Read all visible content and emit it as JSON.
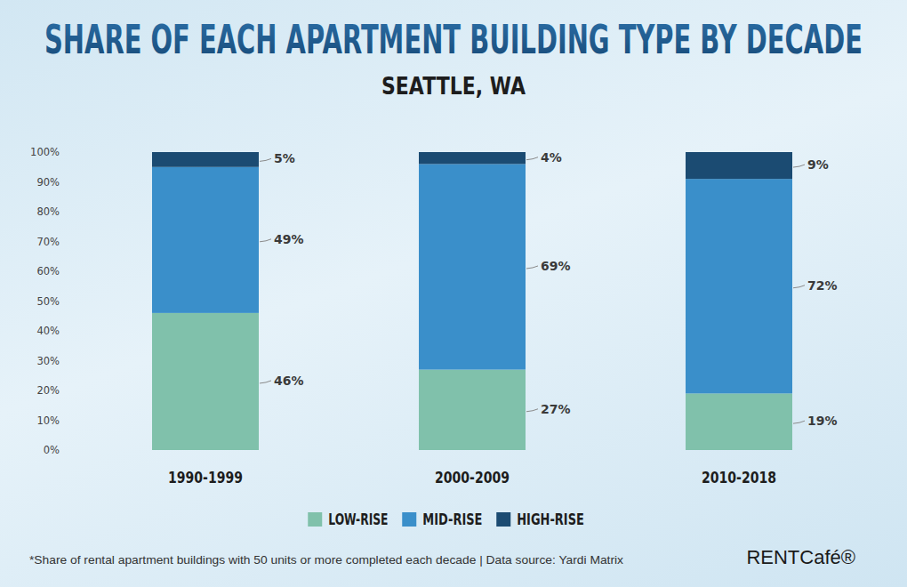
{
  "chart_data": {
    "type": "bar",
    "title": "SHARE OF EACH APARTMENT BUILDING TYPE BY DECADE",
    "subtitle": "SEATTLE, WA",
    "annotations": [
      "*Share of rental apartment buildings with 50 units or more completed each decade  |  Data source: Yardi Matrix",
      "RENTCafé®"
    ],
    "categories": [
      "1990-1999",
      "2000-2009",
      "2010-2018"
    ],
    "series": [
      {
        "name": "LOW-RISE",
        "color": "#80c1ab",
        "values": [
          46,
          27,
          19
        ],
        "value_labels": [
          "46%",
          "27%",
          "19%"
        ]
      },
      {
        "name": "MID-RISE",
        "color": "#3a8fca",
        "values": [
          49,
          69,
          72
        ],
        "value_labels": [
          "49%",
          "69%",
          "72%"
        ]
      },
      {
        "name": "HIGH-RISE",
        "color": "#1b4b72",
        "values": [
          5,
          4,
          9
        ],
        "value_labels": [
          "5%",
          "4%",
          "9%"
        ]
      }
    ],
    "ylim": [
      0,
      100
    ],
    "yticks": [
      {
        "value": 0,
        "label": "0%"
      },
      {
        "value": 10,
        "label": "10%"
      },
      {
        "value": 20,
        "label": "20%"
      },
      {
        "value": 30,
        "label": "30%"
      },
      {
        "value": 40,
        "label": "40%"
      },
      {
        "value": 50,
        "label": "50%"
      },
      {
        "value": 60,
        "label": "60%"
      },
      {
        "value": 70,
        "label": "70%"
      },
      {
        "value": 80,
        "label": "80%"
      },
      {
        "value": 90,
        "label": "90%"
      },
      {
        "value": 100,
        "label": "100%"
      }
    ],
    "stacked": true,
    "data_labels": true,
    "grid": false,
    "legend": "bottom"
  }
}
